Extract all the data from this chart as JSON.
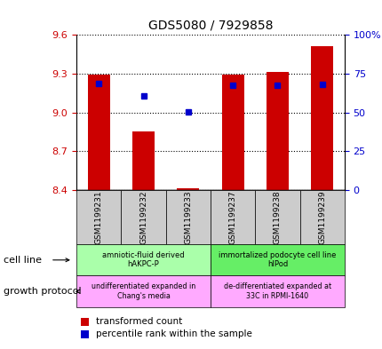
{
  "title": "GDS5080 / 7929858",
  "samples": [
    "GSM1199231",
    "GSM1199232",
    "GSM1199233",
    "GSM1199237",
    "GSM1199238",
    "GSM1199239"
  ],
  "red_bar_top": [
    9.295,
    8.855,
    8.415,
    9.295,
    9.315,
    9.51
  ],
  "blue_dot_y": [
    9.225,
    9.13,
    9.005,
    9.21,
    9.21,
    9.22
  ],
  "ylim": [
    8.4,
    9.6
  ],
  "y_ticks": [
    8.4,
    8.7,
    9.0,
    9.3,
    9.6
  ],
  "right_ticks": [
    0,
    25,
    50,
    75,
    100
  ],
  "right_tick_labels": [
    "0",
    "25",
    "50",
    "75",
    "100%"
  ],
  "bar_color": "#cc0000",
  "dot_color": "#0000cc",
  "bar_bottom": 8.4,
  "bar_width": 0.5,
  "cell_line_groups": [
    {
      "label": "amniotic-fluid derived\nhAKPC-P",
      "start": 0,
      "end": 3,
      "color": "#aaffaa"
    },
    {
      "label": "immortalized podocyte cell line\nhIPod",
      "start": 3,
      "end": 6,
      "color": "#66ee66"
    }
  ],
  "growth_protocol_groups": [
    {
      "label": "undifferentiated expanded in\nChang's media",
      "start": 0,
      "end": 3,
      "color": "#ffaaff"
    },
    {
      "label": "de-differentiated expanded at\n33C in RPMI-1640",
      "start": 3,
      "end": 6,
      "color": "#ffaaff"
    }
  ],
  "xlabel_cell_line": "cell line",
  "xlabel_growth": "growth protocol",
  "legend_red": "transformed count",
  "legend_blue": "percentile rank within the sample",
  "tick_color_left": "#cc0000",
  "tick_color_right": "#0000cc",
  "sample_box_color": "#cccccc"
}
